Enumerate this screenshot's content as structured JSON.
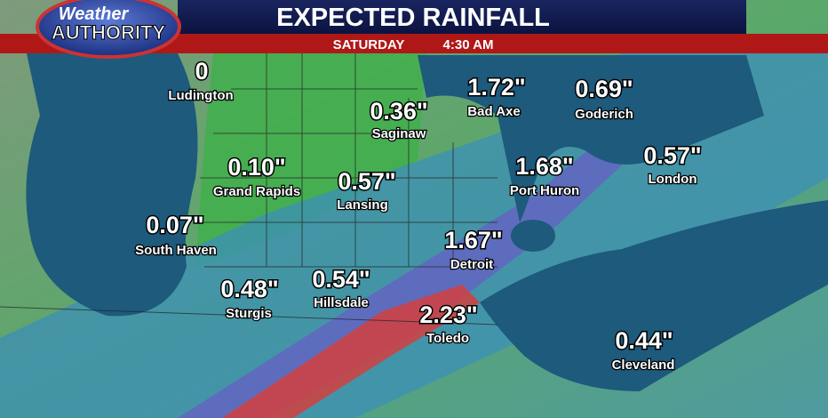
{
  "logo": {
    "line1": "Weather",
    "line2": "AUTHORITY"
  },
  "header": {
    "title": "EXPECTED RAINFALL",
    "day": "SATURDAY",
    "time": "4:30 AM"
  },
  "cities": [
    {
      "value": "0",
      "name": "Ludington"
    },
    {
      "value": "0.36\"",
      "name": "Saginaw"
    },
    {
      "value": "1.72\"",
      "name": "Bad Axe"
    },
    {
      "value": "0.69\"",
      "name": "Goderich"
    },
    {
      "value": "0.10\"",
      "name": "Grand Rapids"
    },
    {
      "value": "0.57\"",
      "name": "Lansing"
    },
    {
      "value": "1.68\"",
      "name": "Port Huron"
    },
    {
      "value": "0.57\"",
      "name": "London"
    },
    {
      "value": "0.07\"",
      "name": "South Haven"
    },
    {
      "value": "1.67\"",
      "name": "Detroit"
    },
    {
      "value": "0.48\"",
      "name": "Sturgis"
    },
    {
      "value": "0.54\"",
      "name": "Hillsdale"
    },
    {
      "value": "2.23\"",
      "name": "Toledo"
    },
    {
      "value": "0.44\"",
      "name": "Cleveland"
    }
  ]
}
